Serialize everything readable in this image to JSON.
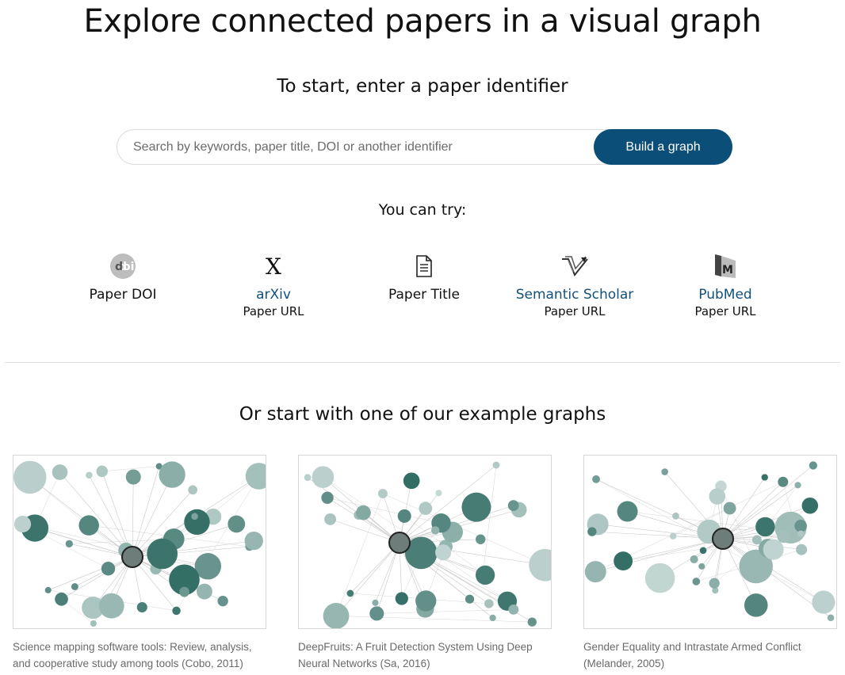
{
  "hero": {
    "title": "Explore connected papers in a visual graph",
    "subtitle": "To start, enter a paper identifier"
  },
  "search": {
    "placeholder": "Search by keywords, paper title, DOI or another identifier",
    "value": "",
    "button_label": "Build a graph"
  },
  "try": {
    "label": "You can try:",
    "items": [
      {
        "icon": "doi-icon",
        "main": "Paper DOI",
        "sub": ""
      },
      {
        "icon": "arxiv-icon",
        "main": "arXiv",
        "sub": "Paper URL"
      },
      {
        "icon": "document-icon",
        "main": "Paper Title",
        "sub": ""
      },
      {
        "icon": "semantic-scholar-icon",
        "main": "Semantic Scholar",
        "sub": "Paper URL"
      },
      {
        "icon": "pubmed-icon",
        "main": "PubMed",
        "sub": "Paper URL"
      }
    ]
  },
  "examples": {
    "heading": "Or start with one of our example graphs",
    "items": [
      {
        "caption": "Science mapping software tools: Review, analysis, and cooperative study among tools (Cobo, 2011)"
      },
      {
        "caption": "DeepFruits: A Fruit Detection System Using Deep Neural Networks (Sa, 2016)"
      },
      {
        "caption": "Gender Equality and Intrastate Armed Conflict (Melander, 2005)"
      }
    ]
  },
  "colors": {
    "accent": "#0b4f78",
    "link": "#13507a",
    "node_dark": "#2f6b62",
    "node_light": "#c7d9d6"
  }
}
